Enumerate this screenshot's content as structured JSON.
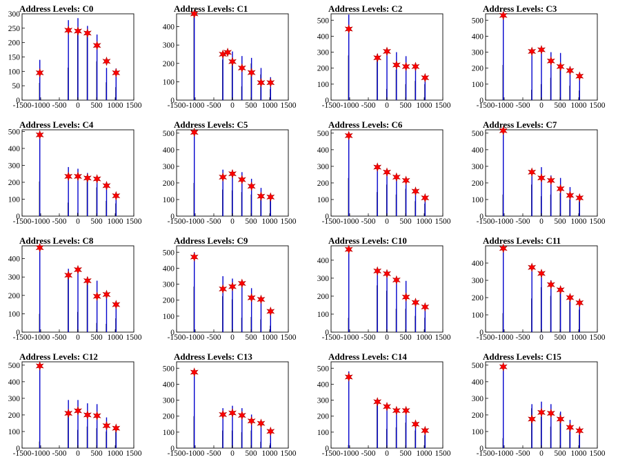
{
  "chart_data": [
    {
      "type": "bar",
      "title": "Address Levels: C0",
      "xlim": [
        -1500,
        1500
      ],
      "ylim": [
        0,
        300
      ],
      "xticks": [
        -1500,
        -1000,
        -500,
        0,
        500,
        1000,
        1500
      ],
      "yticks": [
        0,
        50,
        100,
        150,
        200,
        250,
        300
      ],
      "markers": {
        "x": [
          -1024,
          -256,
          0,
          256,
          512,
          768,
          1024
        ],
        "y": [
          95,
          243,
          240,
          233,
          190,
          135,
          95
        ]
      },
      "bars": {
        "x": [
          -1034,
          -1024,
          -266,
          -256,
          -10,
          0,
          246,
          256,
          502,
          512,
          758,
          768,
          1014,
          1024
        ],
        "y": [
          60,
          140,
          113,
          278,
          245,
          285,
          230,
          258,
          135,
          228,
          62,
          112,
          45,
          110
        ]
      }
    },
    {
      "type": "bar",
      "title": "Address Levels: C1",
      "xlim": [
        -1500,
        1500
      ],
      "ylim": [
        0,
        470
      ],
      "xticks": [
        -1500,
        -1000,
        -500,
        0,
        500,
        1000,
        1500
      ],
      "yticks": [
        0,
        100,
        200,
        300,
        400
      ],
      "markers": {
        "x": [
          -1024,
          -256,
          -128,
          0,
          256,
          512,
          768,
          1024
        ],
        "y": [
          470,
          250,
          260,
          210,
          175,
          150,
          95,
          95
        ]
      },
      "bars": {
        "x": [
          -1034,
          -1024,
          -266,
          -256,
          -10,
          0,
          246,
          256,
          502,
          512,
          758,
          768,
          1014,
          1024
        ],
        "y": [
          460,
          470,
          220,
          255,
          200,
          265,
          75,
          240,
          200,
          230,
          140,
          175,
          60,
          125
        ]
      }
    },
    {
      "type": "bar",
      "title": "Address Levels: C2",
      "xlim": [
        -1500,
        1500
      ],
      "ylim": [
        0,
        540
      ],
      "xticks": [
        -1500,
        -1000,
        -500,
        0,
        500,
        1000,
        1500
      ],
      "yticks": [
        0,
        100,
        200,
        300,
        400,
        500
      ],
      "markers": {
        "x": [
          -1024,
          -256,
          0,
          256,
          512,
          768,
          1024
        ],
        "y": [
          445,
          265,
          305,
          220,
          210,
          210,
          140
        ]
      },
      "bars": {
        "x": [
          -1034,
          -1024,
          -266,
          -256,
          -10,
          0,
          246,
          256,
          502,
          512,
          758,
          768,
          1014,
          1024
        ],
        "y": [
          280,
          535,
          250,
          290,
          70,
          310,
          190,
          300,
          100,
          275,
          120,
          225,
          100,
          150
        ]
      }
    },
    {
      "type": "bar",
      "title": "Address Levels: C3",
      "xlim": [
        -1500,
        1500
      ],
      "ylim": [
        0,
        540
      ],
      "xticks": [
        -1500,
        -1000,
        -500,
        0,
        500,
        1000,
        1500
      ],
      "yticks": [
        0,
        100,
        200,
        300,
        400,
        500
      ],
      "markers": {
        "x": [
          -1024,
          -256,
          0,
          256,
          512,
          768,
          1024
        ],
        "y": [
          530,
          305,
          315,
          245,
          210,
          185,
          150
        ]
      },
      "bars": {
        "x": [
          -1034,
          -1024,
          -266,
          -256,
          -10,
          0,
          246,
          256,
          502,
          512,
          758,
          768,
          1014,
          1024
        ],
        "y": [
          220,
          530,
          65,
          315,
          100,
          325,
          140,
          300,
          200,
          295,
          90,
          210,
          60,
          155
        ]
      }
    },
    {
      "type": "bar",
      "title": "Address Levels: C4",
      "xlim": [
        -1500,
        1500
      ],
      "ylim": [
        0,
        510
      ],
      "xticks": [
        -1500,
        -1000,
        -500,
        0,
        500,
        1000,
        1500
      ],
      "yticks": [
        0,
        100,
        200,
        300,
        400,
        500
      ],
      "markers": {
        "x": [
          -1024,
          -256,
          0,
          256,
          512,
          768,
          1024
        ],
        "y": [
          480,
          235,
          235,
          225,
          220,
          180,
          120
        ]
      },
      "bars": {
        "x": [
          -1034,
          -1024,
          -266,
          -256,
          -10,
          0,
          246,
          256,
          502,
          512,
          758,
          768,
          1014,
          1024
        ],
        "y": [
          205,
          490,
          80,
          290,
          20,
          280,
          210,
          255,
          170,
          230,
          90,
          185,
          75,
          125
        ]
      }
    },
    {
      "type": "bar",
      "title": "Address Levels: C5",
      "xlim": [
        -1500,
        1500
      ],
      "ylim": [
        0,
        520
      ],
      "xticks": [
        -1500,
        -1000,
        -500,
        0,
        500,
        1000,
        1500
      ],
      "yticks": [
        0,
        100,
        200,
        300,
        400,
        500
      ],
      "markers": {
        "x": [
          -1024,
          -256,
          0,
          256,
          512,
          768,
          1024
        ],
        "y": [
          505,
          235,
          255,
          220,
          180,
          120,
          115
        ]
      },
      "bars": {
        "x": [
          -1034,
          -1024,
          -266,
          -256,
          -10,
          0,
          246,
          256,
          502,
          512,
          758,
          768,
          1014,
          1024
        ],
        "y": [
          200,
          510,
          160,
          280,
          155,
          275,
          145,
          265,
          130,
          225,
          100,
          170,
          100,
          130
        ]
      }
    },
    {
      "type": "bar",
      "title": "Address Levels: C6",
      "xlim": [
        -1500,
        1500
      ],
      "ylim": [
        0,
        520
      ],
      "xticks": [
        -1500,
        -1000,
        -500,
        0,
        500,
        1000,
        1500
      ],
      "yticks": [
        0,
        100,
        200,
        300,
        400,
        500
      ],
      "markers": {
        "x": [
          -1024,
          -256,
          0,
          256,
          512,
          768,
          1024
        ],
        "y": [
          485,
          295,
          265,
          235,
          215,
          150,
          110
        ]
      },
      "bars": {
        "x": [
          -1034,
          -1024,
          -266,
          -256,
          -10,
          0,
          246,
          256,
          502,
          512,
          758,
          768,
          1014,
          1024
        ],
        "y": [
          230,
          490,
          145,
          295,
          190,
          270,
          130,
          240,
          165,
          225,
          90,
          160,
          75,
          120
        ]
      }
    },
    {
      "type": "bar",
      "title": "Address Levels: C7",
      "xlim": [
        -1500,
        1500
      ],
      "ylim": [
        0,
        520
      ],
      "xticks": [
        -1500,
        -1000,
        -500,
        0,
        500,
        1000,
        1500
      ],
      "yticks": [
        0,
        100,
        200,
        300,
        400,
        500
      ],
      "markers": {
        "x": [
          -1024,
          -256,
          0,
          256,
          512,
          768,
          1024
        ],
        "y": [
          515,
          265,
          230,
          215,
          165,
          125,
          110
        ]
      },
      "bars": {
        "x": [
          -1034,
          -1024,
          -266,
          -256,
          -10,
          0,
          246,
          256,
          502,
          512,
          758,
          768,
          1014,
          1024
        ],
        "y": [
          130,
          520,
          190,
          275,
          120,
          295,
          130,
          245,
          140,
          230,
          100,
          175,
          90,
          120
        ]
      }
    },
    {
      "type": "bar",
      "title": "Address Levels: C8",
      "xlim": [
        -1500,
        1500
      ],
      "ylim": [
        0,
        470
      ],
      "xticks": [
        -1500,
        -1000,
        -500,
        0,
        500,
        1000,
        1500
      ],
      "yticks": [
        0,
        100,
        200,
        300,
        400
      ],
      "markers": {
        "x": [
          -1024,
          -256,
          0,
          256,
          512,
          768,
          1024
        ],
        "y": [
          460,
          310,
          340,
          280,
          195,
          205,
          150
        ]
      },
      "bars": {
        "x": [
          -1034,
          -1024,
          -266,
          -256,
          -10,
          0,
          246,
          256,
          502,
          512,
          758,
          768,
          1014,
          1024
        ],
        "y": [
          100,
          470,
          300,
          345,
          110,
          340,
          265,
          300,
          50,
          280,
          45,
          220,
          75,
          160
        ]
      }
    },
    {
      "type": "bar",
      "title": "Address Levels: C9",
      "xlim": [
        -1500,
        1500
      ],
      "ylim": [
        0,
        540
      ],
      "xticks": [
        -1500,
        -1000,
        -500,
        0,
        500,
        1000,
        1500
      ],
      "yticks": [
        0,
        100,
        200,
        300,
        400,
        500
      ],
      "markers": {
        "x": [
          -1024,
          -256,
          0,
          256,
          512,
          768,
          1024
        ],
        "y": [
          470,
          270,
          285,
          305,
          215,
          205,
          130
        ]
      },
      "bars": {
        "x": [
          -1034,
          -1024,
          -266,
          -256,
          -10,
          0,
          246,
          256,
          502,
          512,
          758,
          768,
          1014,
          1024
        ],
        "y": [
          285,
          500,
          225,
          350,
          205,
          335,
          90,
          320,
          95,
          275,
          80,
          225,
          40,
          145
        ]
      }
    },
    {
      "type": "bar",
      "title": "Address Levels: C10",
      "xlim": [
        -1500,
        1500
      ],
      "ylim": [
        0,
        480
      ],
      "xticks": [
        -1500,
        -1000,
        -500,
        0,
        500,
        1000,
        1500
      ],
      "yticks": [
        0,
        100,
        200,
        300,
        400
      ],
      "markers": {
        "x": [
          -1024,
          -256,
          0,
          256,
          512,
          768,
          1024
        ],
        "y": [
          460,
          340,
          325,
          290,
          195,
          165,
          140
        ]
      },
      "bars": {
        "x": [
          -1034,
          -1024,
          -266,
          -256,
          -10,
          0,
          246,
          256,
          502,
          512,
          758,
          768,
          1014,
          1024
        ],
        "y": [
          80,
          470,
          260,
          350,
          230,
          330,
          130,
          300,
          130,
          285,
          90,
          180,
          80,
          150
        ]
      }
    },
    {
      "type": "bar",
      "title": "Address Levels: C11",
      "xlim": [
        -1500,
        1500
      ],
      "ylim": [
        0,
        500
      ],
      "xticks": [
        -1500,
        -1000,
        -500,
        0,
        500,
        1000,
        1500
      ],
      "yticks": [
        0,
        100,
        200,
        300,
        400
      ],
      "markers": {
        "x": [
          -1024,
          -256,
          0,
          256,
          512,
          768,
          1024
        ],
        "y": [
          485,
          375,
          340,
          275,
          245,
          200,
          170
        ]
      },
      "bars": {
        "x": [
          -1034,
          -1024,
          -266,
          -256,
          -10,
          0,
          246,
          256,
          502,
          512,
          758,
          768,
          1014,
          1024
        ],
        "y": [
          110,
          490,
          195,
          390,
          260,
          355,
          210,
          300,
          240,
          260,
          180,
          215,
          130,
          180
        ]
      }
    },
    {
      "type": "bar",
      "title": "Address Levels: C12",
      "xlim": [
        -1500,
        1500
      ],
      "ylim": [
        0,
        520
      ],
      "xticks": [
        -1500,
        -1000,
        -500,
        0,
        500,
        1000,
        1500
      ],
      "yticks": [
        0,
        100,
        200,
        300,
        400,
        500
      ],
      "markers": {
        "x": [
          -1024,
          -256,
          0,
          256,
          512,
          768,
          1024
        ],
        "y": [
          495,
          210,
          225,
          200,
          195,
          135,
          120
        ]
      },
      "bars": {
        "x": [
          -1034,
          -1024,
          -266,
          -256,
          -10,
          0,
          246,
          256,
          502,
          512,
          758,
          768,
          1014,
          1024
        ],
        "y": [
          40,
          505,
          195,
          290,
          110,
          290,
          130,
          270,
          120,
          265,
          100,
          185,
          100,
          130
        ]
      }
    },
    {
      "type": "bar",
      "title": "Address Levels: C13",
      "xlim": [
        -1500,
        1500
      ],
      "ylim": [
        0,
        540
      ],
      "xticks": [
        -1500,
        -1000,
        -500,
        0,
        500,
        1000,
        1500
      ],
      "yticks": [
        0,
        100,
        200,
        300,
        400,
        500
      ],
      "markers": {
        "x": [
          -1024,
          -256,
          0,
          256,
          512,
          768,
          1024
        ],
        "y": [
          475,
          210,
          220,
          205,
          170,
          155,
          105
        ]
      },
      "bars": {
        "x": [
          -1034,
          -1024,
          -266,
          -256,
          -10,
          0,
          246,
          256,
          502,
          512,
          758,
          768,
          1014,
          1024
        ],
        "y": [
          200,
          480,
          110,
          250,
          110,
          265,
          100,
          250,
          110,
          210,
          40,
          165,
          30,
          110
        ]
      }
    },
    {
      "type": "bar",
      "title": "Address Levels: C14",
      "xlim": [
        -1500,
        1500
      ],
      "ylim": [
        0,
        540
      ],
      "xticks": [
        -1500,
        -1000,
        -500,
        0,
        500,
        1000,
        1500
      ],
      "yticks": [
        0,
        100,
        200,
        300,
        400,
        500
      ],
      "markers": {
        "x": [
          -1024,
          -256,
          0,
          256,
          512,
          768,
          1024
        ],
        "y": [
          445,
          290,
          260,
          235,
          235,
          150,
          110
        ]
      },
      "bars": {
        "x": [
          -1034,
          -1024,
          -266,
          -256,
          -10,
          0,
          246,
          256,
          502,
          512,
          758,
          768,
          1014,
          1024
        ],
        "y": [
          20,
          480,
          270,
          300,
          120,
          275,
          130,
          250,
          160,
          245,
          110,
          165,
          80,
          120
        ]
      }
    },
    {
      "type": "bar",
      "title": "Address Levels: C15",
      "xlim": [
        -1500,
        1500
      ],
      "ylim": [
        0,
        520
      ],
      "xticks": [
        -1500,
        -1000,
        -500,
        0,
        500,
        1000,
        1500
      ],
      "yticks": [
        0,
        100,
        200,
        300,
        400,
        500
      ],
      "markers": {
        "x": [
          -1024,
          -256,
          0,
          256,
          512,
          768,
          1024
        ],
        "y": [
          490,
          175,
          215,
          210,
          175,
          125,
          105
        ]
      },
      "bars": {
        "x": [
          -1034,
          -1024,
          -266,
          -256,
          -10,
          0,
          246,
          256,
          502,
          512,
          758,
          768,
          1014,
          1024
        ],
        "y": [
          60,
          500,
          240,
          265,
          190,
          280,
          130,
          265,
          210,
          220,
          110,
          170,
          80,
          115
        ]
      }
    }
  ],
  "colors": {
    "bar": "#0000cc",
    "bar_shadow": "#000000",
    "marker_fill": "#ff0000",
    "marker_stroke": "#b00000"
  }
}
